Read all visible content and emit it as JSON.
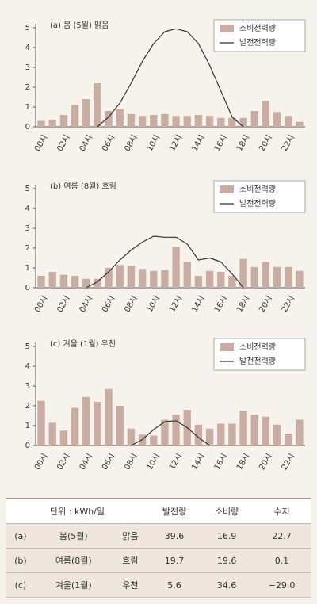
{
  "chart_data": [
    {
      "type": "bar",
      "title": "(a) 봄 (5월) 맑음",
      "categories": [
        "00시",
        null,
        "02시",
        null,
        "04시",
        null,
        "06시",
        null,
        "08시",
        null,
        "10시",
        null,
        "12시",
        null,
        "14시",
        null,
        "16시",
        null,
        "18시",
        null,
        "20시",
        null,
        "22시",
        null
      ],
      "series": [
        {
          "name": "소비전력량",
          "type": "bar",
          "color": "#c9ada3",
          "values": [
            0.3,
            0.35,
            0.6,
            1.1,
            1.4,
            2.2,
            0.8,
            0.9,
            0.65,
            0.55,
            0.6,
            0.65,
            0.55,
            0.55,
            0.6,
            0.55,
            0.45,
            0.45,
            0.45,
            0.8,
            1.3,
            0.75,
            0.55,
            0.25
          ]
        },
        {
          "name": "발전전력량",
          "type": "line",
          "color": "#333333",
          "values": [
            null,
            null,
            null,
            null,
            null,
            0,
            0.5,
            1.2,
            2.2,
            3.3,
            4.2,
            4.8,
            4.95,
            4.8,
            4.2,
            3.1,
            1.8,
            0.5,
            0,
            null,
            null,
            null,
            null,
            null
          ]
        }
      ],
      "ylim": [
        0,
        5
      ],
      "yticks": [
        0,
        1,
        2,
        3,
        4,
        5
      ],
      "grid": false,
      "legend": "top-right"
    },
    {
      "type": "bar",
      "title": "(b) 여름 (8월) 흐림",
      "categories": [
        "00시",
        null,
        "02시",
        null,
        "04시",
        null,
        "06시",
        null,
        "08시",
        null,
        "10시",
        null,
        "12시",
        null,
        "14시",
        null,
        "16시",
        null,
        "18시",
        null,
        "20시",
        null,
        "22시",
        null
      ],
      "series": [
        {
          "name": "소비전력량",
          "type": "bar",
          "color": "#c9ada3",
          "values": [
            0.6,
            0.8,
            0.65,
            0.6,
            0.45,
            0.45,
            1.0,
            1.15,
            1.1,
            0.95,
            0.85,
            0.9,
            2.05,
            1.3,
            0.6,
            0.85,
            0.8,
            0.6,
            1.45,
            1.05,
            1.3,
            1.05,
            1.05,
            0.85
          ]
        },
        {
          "name": "발전전력량",
          "type": "line",
          "color": "#333333",
          "values": [
            null,
            null,
            null,
            null,
            0,
            0.3,
            0.8,
            1.4,
            1.9,
            2.3,
            2.6,
            2.55,
            2.55,
            2.2,
            1.4,
            1.5,
            1.3,
            0.7,
            0,
            null,
            null,
            null,
            null,
            null
          ]
        }
      ],
      "ylim": [
        0,
        5
      ],
      "yticks": [
        0,
        1,
        2,
        3,
        4,
        5
      ],
      "grid": false,
      "legend": "top-right"
    },
    {
      "type": "bar",
      "title": "(c) 겨울 (1월) 우천",
      "categories": [
        "00시",
        null,
        "02시",
        null,
        "04시",
        null,
        "06시",
        null,
        "08시",
        null,
        "10시",
        null,
        "12시",
        null,
        "14시",
        null,
        "16시",
        null,
        "18시",
        null,
        "20시",
        null,
        "22시",
        null
      ],
      "series": [
        {
          "name": "소비전력량",
          "type": "bar",
          "color": "#c9ada3",
          "values": [
            2.25,
            1.15,
            0.75,
            1.9,
            2.45,
            2.2,
            2.85,
            2.0,
            0.85,
            0.55,
            0.5,
            1.3,
            1.55,
            1.8,
            1.05,
            0.85,
            1.1,
            1.1,
            1.75,
            1.55,
            1.45,
            1.05,
            0.6,
            1.3
          ]
        },
        {
          "name": "발전전력량",
          "type": "line",
          "color": "#333333",
          "values": [
            null,
            null,
            null,
            null,
            null,
            null,
            null,
            null,
            0,
            0.3,
            0.8,
            1.2,
            1.25,
            0.9,
            0.4,
            0,
            null,
            null,
            null,
            null,
            null,
            null,
            null,
            null
          ]
        }
      ],
      "ylim": [
        0,
        5
      ],
      "yticks": [
        0,
        1,
        2,
        3,
        4,
        5
      ],
      "grid": false,
      "legend": "top-right"
    }
  ],
  "table": {
    "header": [
      "단위 : kWh/일",
      "발전량",
      "소비량",
      "수지"
    ],
    "rows": [
      [
        "(a)",
        "봄(5월)",
        "맑음",
        "39.6",
        "16.9",
        "22.7"
      ],
      [
        "(b)",
        "여름(8월)",
        "흐림",
        "19.7",
        "19.6",
        "0.1"
      ],
      [
        "(c)",
        "겨울(1월)",
        "우천",
        "5.6",
        "34.6",
        "−29.0"
      ]
    ]
  }
}
